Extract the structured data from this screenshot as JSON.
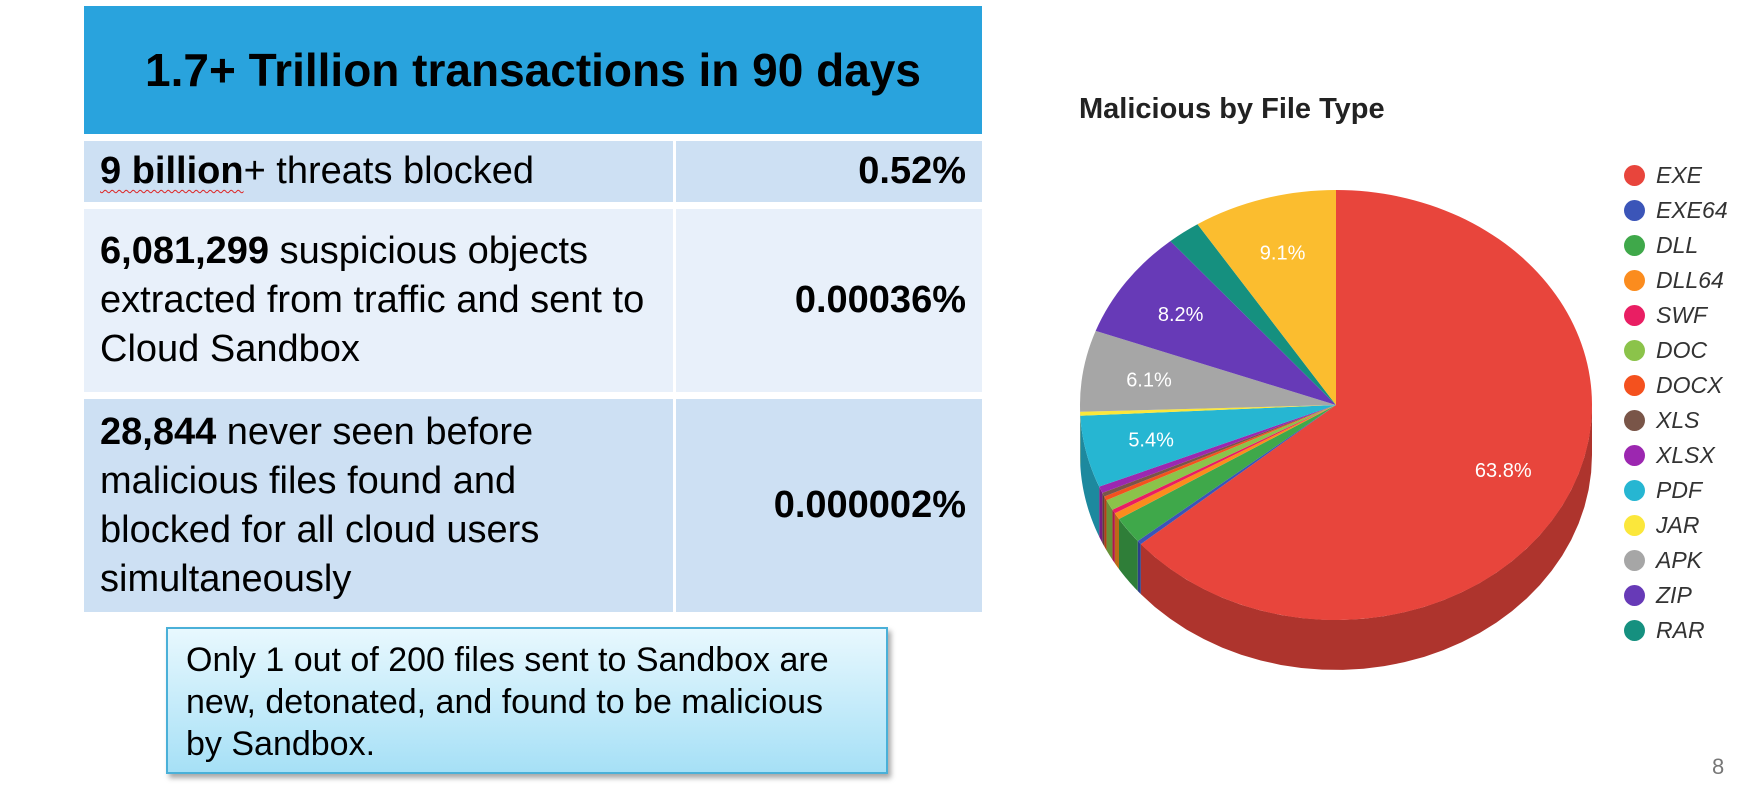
{
  "header": {
    "title": "1.7+ Trillion transactions in 90 days"
  },
  "rows": [
    {
      "bold": "9 billion",
      "text": "+ threats blocked",
      "pct": "0.52%"
    },
    {
      "bold": "6,081,299",
      "text": " suspicious objects extracted from traffic and sent to Cloud Sandbox",
      "pct": "0.00036%"
    },
    {
      "bold": "28,844",
      "text": " never seen before malicious files found and blocked for all cloud users simultaneously",
      "pct": "0.000002%"
    }
  ],
  "note": "Only 1 out of 200 files sent to Sandbox are new, detonated, and found to be malicious by Sandbox.",
  "page_number": "8",
  "chart_data": {
    "type": "pie",
    "title": "Malicious by File Type",
    "legend_position": "right",
    "slices": [
      {
        "label": "EXE",
        "value": 63.8,
        "color": "#e8453c",
        "display": "63.8%"
      },
      {
        "label": "EXE64",
        "value": 0.3,
        "color": "#3b55b8",
        "display": ""
      },
      {
        "label": "DLL",
        "value": 2.0,
        "color": "#3fa84a",
        "display": ""
      },
      {
        "label": "DLL64",
        "value": 0.5,
        "color": "#fb8c1e",
        "display": ""
      },
      {
        "label": "SWF",
        "value": 0.3,
        "color": "#e91e63",
        "display": ""
      },
      {
        "label": "DOC",
        "value": 0.8,
        "color": "#8bc34a",
        "display": ""
      },
      {
        "label": "DOCX",
        "value": 0.3,
        "color": "#f4511e",
        "display": ""
      },
      {
        "label": "XLS",
        "value": 0.3,
        "color": "#795548",
        "display": ""
      },
      {
        "label": "XLSX",
        "value": 0.5,
        "color": "#9c27b0",
        "display": ""
      },
      {
        "label": "PDF",
        "value": 5.4,
        "color": "#26b6d2",
        "display": "5.4%"
      },
      {
        "label": "JAR",
        "value": 0.3,
        "color": "#fbe73b",
        "display": ""
      },
      {
        "label": "APK",
        "value": 6.1,
        "color": "#a6a6a6",
        "display": "6.1%"
      },
      {
        "label": "ZIP",
        "value": 8.2,
        "color": "#673ab7",
        "display": "8.2%"
      },
      {
        "label": "RAR",
        "value": 2.1,
        "color": "#15907f",
        "display": ""
      },
      {
        "label": "",
        "value": 9.1,
        "color": "#fbbd2f",
        "display": "9.1%"
      }
    ]
  }
}
